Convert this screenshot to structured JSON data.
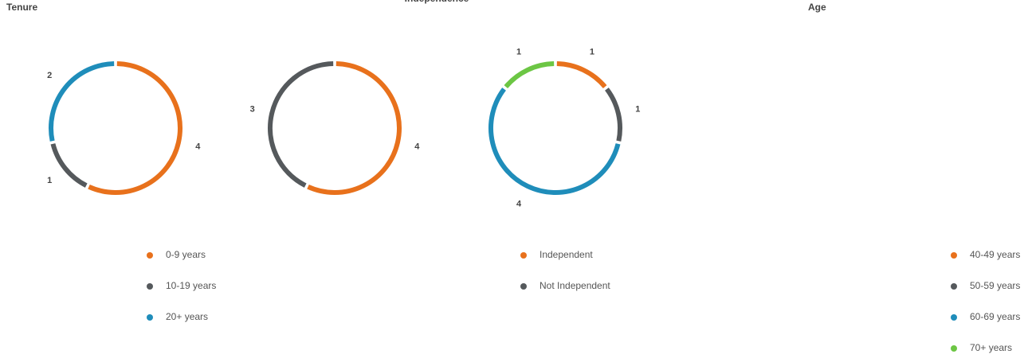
{
  "chart_data": [
    {
      "type": "pie",
      "title": "Tenure",
      "categories": [
        "0-9 years",
        "10-19 years",
        "20+ years"
      ],
      "values": [
        4,
        1,
        2
      ],
      "colors": [
        "#e8711c",
        "#55595c",
        "#1f8dba"
      ]
    },
    {
      "type": "pie",
      "title": "Independence",
      "categories": [
        "Independent",
        "Not Independent"
      ],
      "values": [
        4,
        3
      ],
      "colors": [
        "#e8711c",
        "#55595c"
      ]
    },
    {
      "type": "pie",
      "title": "Age",
      "categories": [
        "40-49 years",
        "50-59 years",
        "60-69 years",
        "70+ years"
      ],
      "values": [
        1,
        1,
        4,
        1
      ],
      "colors": [
        "#e8711c",
        "#55595c",
        "#1f8dba",
        "#6cc644"
      ]
    }
  ]
}
